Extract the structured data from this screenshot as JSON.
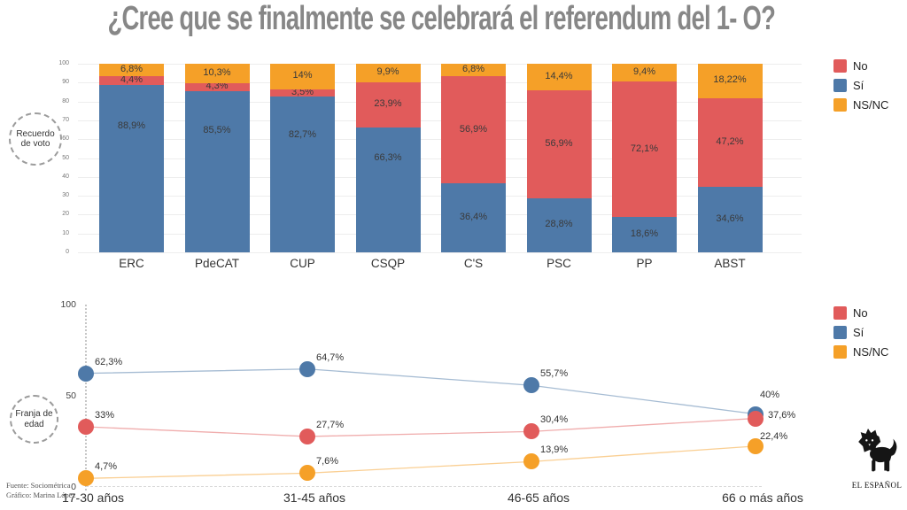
{
  "title": "¿Cree que se finalmente se celebrará el referendum del 1- O?",
  "colors": {
    "no": "#E15B5B",
    "si": "#4E79A8",
    "nsnc": "#F5A028",
    "title_gray": "#878787"
  },
  "legend_items": [
    {
      "label": "No",
      "color_key": "no"
    },
    {
      "label": "Sí",
      "color_key": "si"
    },
    {
      "label": "NS/NC",
      "color_key": "nsnc"
    }
  ],
  "chart_data": [
    {
      "type": "bar",
      "stacked": true,
      "group_label": "Recuerdo de voto",
      "categories": [
        "ERC",
        "PdeCAT",
        "CUP",
        "CSQP",
        "C'S",
        "PSC",
        "PP",
        "ABST"
      ],
      "series": [
        {
          "name": "Sí",
          "color_key": "si",
          "values": [
            88.9,
            85.5,
            82.7,
            66.3,
            36.4,
            28.8,
            18.6,
            34.6
          ],
          "labels": [
            "88,9%",
            "85,5%",
            "82,7%",
            "66,3%",
            "36,4%",
            "28,8%",
            "18,6%",
            "34,6%"
          ]
        },
        {
          "name": "No",
          "color_key": "no",
          "values": [
            4.4,
            4.3,
            3.5,
            23.9,
            56.9,
            56.9,
            72.1,
            47.2
          ],
          "labels": [
            "4,4%",
            "4,3%",
            "3,5%",
            "23,9%",
            "56,9%",
            "56,9%",
            "72,1%",
            "47,2%"
          ]
        },
        {
          "name": "NS/NC",
          "color_key": "nsnc",
          "values": [
            6.8,
            10.3,
            14,
            9.9,
            6.8,
            14.4,
            9.4,
            18.22
          ],
          "labels": [
            "6,8%",
            "10,3%",
            "14%",
            "9,9%",
            "6,8%",
            "14,4%",
            "9,4%",
            "18,22%"
          ]
        }
      ],
      "ylim": [
        0,
        100
      ],
      "yticks": [
        0,
        10,
        20,
        30,
        40,
        50,
        60,
        70,
        80,
        90,
        100
      ],
      "grid": true,
      "legend_position": "top-right"
    },
    {
      "type": "line",
      "group_label": "Franja de edad",
      "categories": [
        "17-30 años",
        "31-45 años",
        "46-65 años",
        "66 o más años"
      ],
      "series": [
        {
          "name": "Sí",
          "color_key": "si",
          "values": [
            62.3,
            64.7,
            55.7,
            40
          ],
          "labels": [
            "62,3%",
            "64,7%",
            "55,7%",
            "40%"
          ],
          "label_offsets": {
            "3": [
              5,
              -28
            ]
          }
        },
        {
          "name": "No",
          "color_key": "no",
          "values": [
            33,
            27.7,
            30.4,
            37.6
          ],
          "labels": [
            "33%",
            "27,7%",
            "30,4%",
            "37,6%"
          ],
          "label_offsets": {
            "3": [
              14,
              -10
            ]
          }
        },
        {
          "name": "NS/NC",
          "color_key": "nsnc",
          "values": [
            4.7,
            7.6,
            13.9,
            22.4
          ],
          "labels": [
            "4,7%",
            "7,6%",
            "13,9%",
            "22,4%"
          ],
          "label_offsets": {
            "3": [
              5,
              -17
            ]
          }
        }
      ],
      "ylim": [
        0,
        100
      ],
      "yticks": [
        0,
        50,
        100
      ],
      "grid": false,
      "legend_position": "top-right"
    }
  ],
  "footer": {
    "source": "Fuente: Sociométrica",
    "credit": "Gráfico: Marina López"
  },
  "logo": {
    "text": "EL ESPAÑOL"
  }
}
